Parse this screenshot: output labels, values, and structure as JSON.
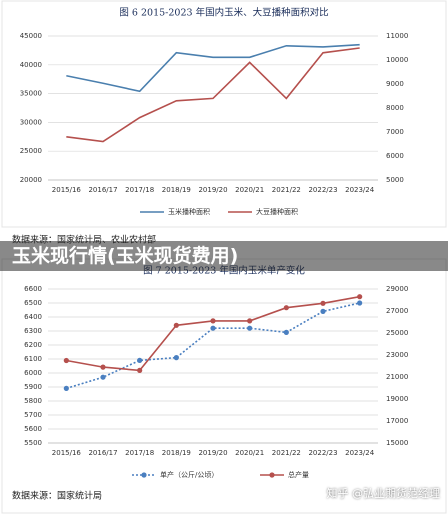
{
  "banner": "玉米现行情(玉米现货费用)",
  "watermark": "知乎 @弘业期货范经理",
  "chart_data": [
    {
      "type": "line",
      "title": "图 6 2015-2023 年国内玉米、大豆播种面积对比",
      "source": "数据来源：国家统计局、农业农村部",
      "categories": [
        "2015/16",
        "2016/17",
        "2017/18",
        "2018/19",
        "2019/20",
        "2020/21",
        "2021/22",
        "2022/23",
        "2023/24"
      ],
      "series": [
        {
          "name": "玉米播种面积",
          "color": "#4a7fae",
          "values": [
            38100,
            36800,
            35400,
            42100,
            41300,
            41300,
            43300,
            43100,
            43500
          ]
        },
        {
          "name": "大豆播种面积",
          "color": "#b5504d",
          "axis": "y2",
          "values": [
            6800,
            6600,
            7600,
            8300,
            8400,
            9900,
            8400,
            10300,
            10500
          ]
        }
      ],
      "ylim": [
        20000,
        45000
      ],
      "yticks": [
        20000,
        25000,
        30000,
        35000,
        40000,
        45000
      ],
      "y2lim": [
        5000,
        11000
      ],
      "y2ticks": [
        5000,
        6000,
        7000,
        8000,
        9000,
        10000,
        11000
      ],
      "grid": true
    },
    {
      "type": "line",
      "title": "图 7 2015-2023 年国内玉米单产变化",
      "source": "数据来源：国家统计局",
      "categories": [
        "2015/16",
        "2016/17",
        "2017/18",
        "2018/19",
        "2019/20",
        "2020/21",
        "2021/22",
        "2022/23",
        "2023/24"
      ],
      "series": [
        {
          "name": "单产（公斤/公顷）",
          "color": "#4a7fc0",
          "dash": "dotted",
          "marker": "circle",
          "values": [
            5890,
            5970,
            6090,
            6110,
            6320,
            6320,
            6290,
            6440,
            6500
          ]
        },
        {
          "name": "总产量",
          "color": "#b5504d",
          "axis": "y2",
          "marker": "circle",
          "values": [
            22500,
            21900,
            21600,
            25700,
            26100,
            26100,
            27300,
            27700,
            28300
          ]
        }
      ],
      "ylim": [
        5500,
        6600
      ],
      "yticks": [
        5500,
        5600,
        5700,
        5800,
        5900,
        6000,
        6100,
        6200,
        6300,
        6400,
        6500,
        6600
      ],
      "y2lim": [
        15000,
        29000
      ],
      "y2ticks": [
        15000,
        17000,
        19000,
        21000,
        23000,
        25000,
        27000,
        29000
      ],
      "grid": true
    }
  ]
}
